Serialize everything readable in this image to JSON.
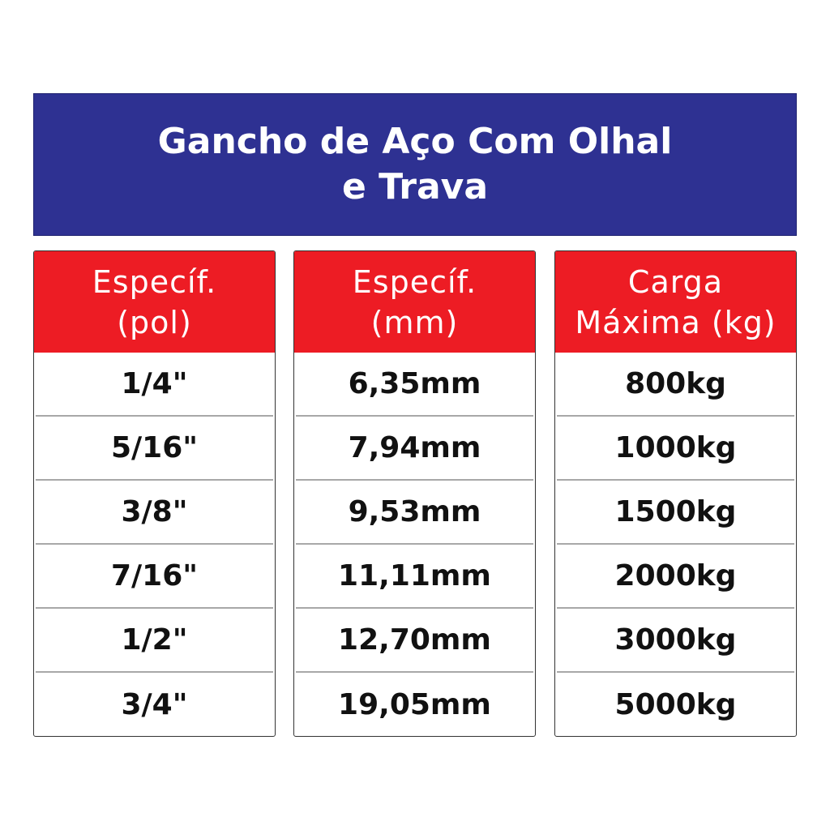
{
  "title": "Gancho de Aço Com Olhal e Trava",
  "colors": {
    "title_bg": "#2e3192",
    "header_bg": "#ed1c24"
  },
  "columns": [
    {
      "header": "Específ.\n(pol)",
      "values": [
        "1/4\"",
        "5/16\"",
        "3/8\"",
        "7/16\"",
        "1/2\"",
        "3/4\""
      ]
    },
    {
      "header": "Específ.\n(mm)",
      "values": [
        "6,35mm",
        "7,94mm",
        "9,53mm",
        "11,11mm",
        "12,70mm",
        "19,05mm"
      ]
    },
    {
      "header": "Carga\nMáxima (kg)",
      "values": [
        "800kg",
        "1000kg",
        "1500kg",
        "2000kg",
        "3000kg",
        "5000kg"
      ]
    }
  ]
}
